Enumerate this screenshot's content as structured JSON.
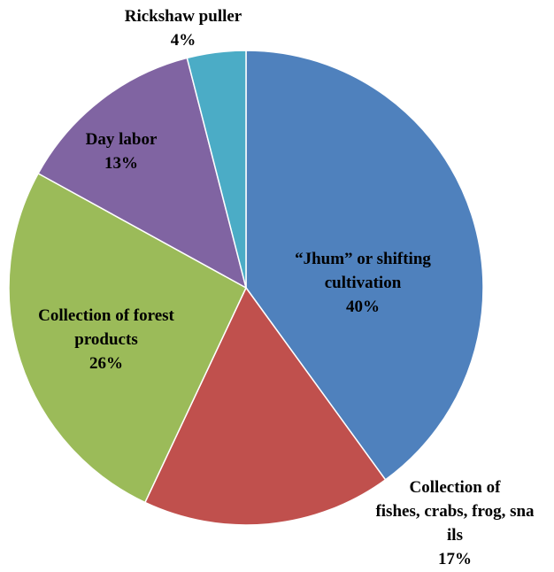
{
  "chart_data": {
    "type": "pie",
    "title": "",
    "slices": [
      {
        "label": "“Jhum” or shifting cultivation",
        "value": 40,
        "display": "40%",
        "color": "#4F81BD"
      },
      {
        "label": "Collection of fishes, crabs, frog, snails",
        "value": 17,
        "display": "17%",
        "color": "#C0504D"
      },
      {
        "label": "Collection of forest products",
        "value": 26,
        "display": "26%",
        "color": "#9BBB59"
      },
      {
        "label": "Day labor",
        "value": 13,
        "display": "13%",
        "color": "#8064A2"
      },
      {
        "label": "Rickshaw puller",
        "value": 4,
        "display": "4%",
        "color": "#4BACC6"
      }
    ],
    "label_lines": [
      [
        "“Jhum” or shifting",
        "cultivation",
        "40%"
      ],
      [
        "Collection of",
        "fishes, crabs, frog, sna",
        "ils",
        "17%"
      ],
      [
        "Collection of forest",
        "products",
        "26%"
      ],
      [
        "Day labor",
        "13%"
      ],
      [
        "Rickshaw puller",
        "4%"
      ]
    ],
    "legend": "none"
  }
}
